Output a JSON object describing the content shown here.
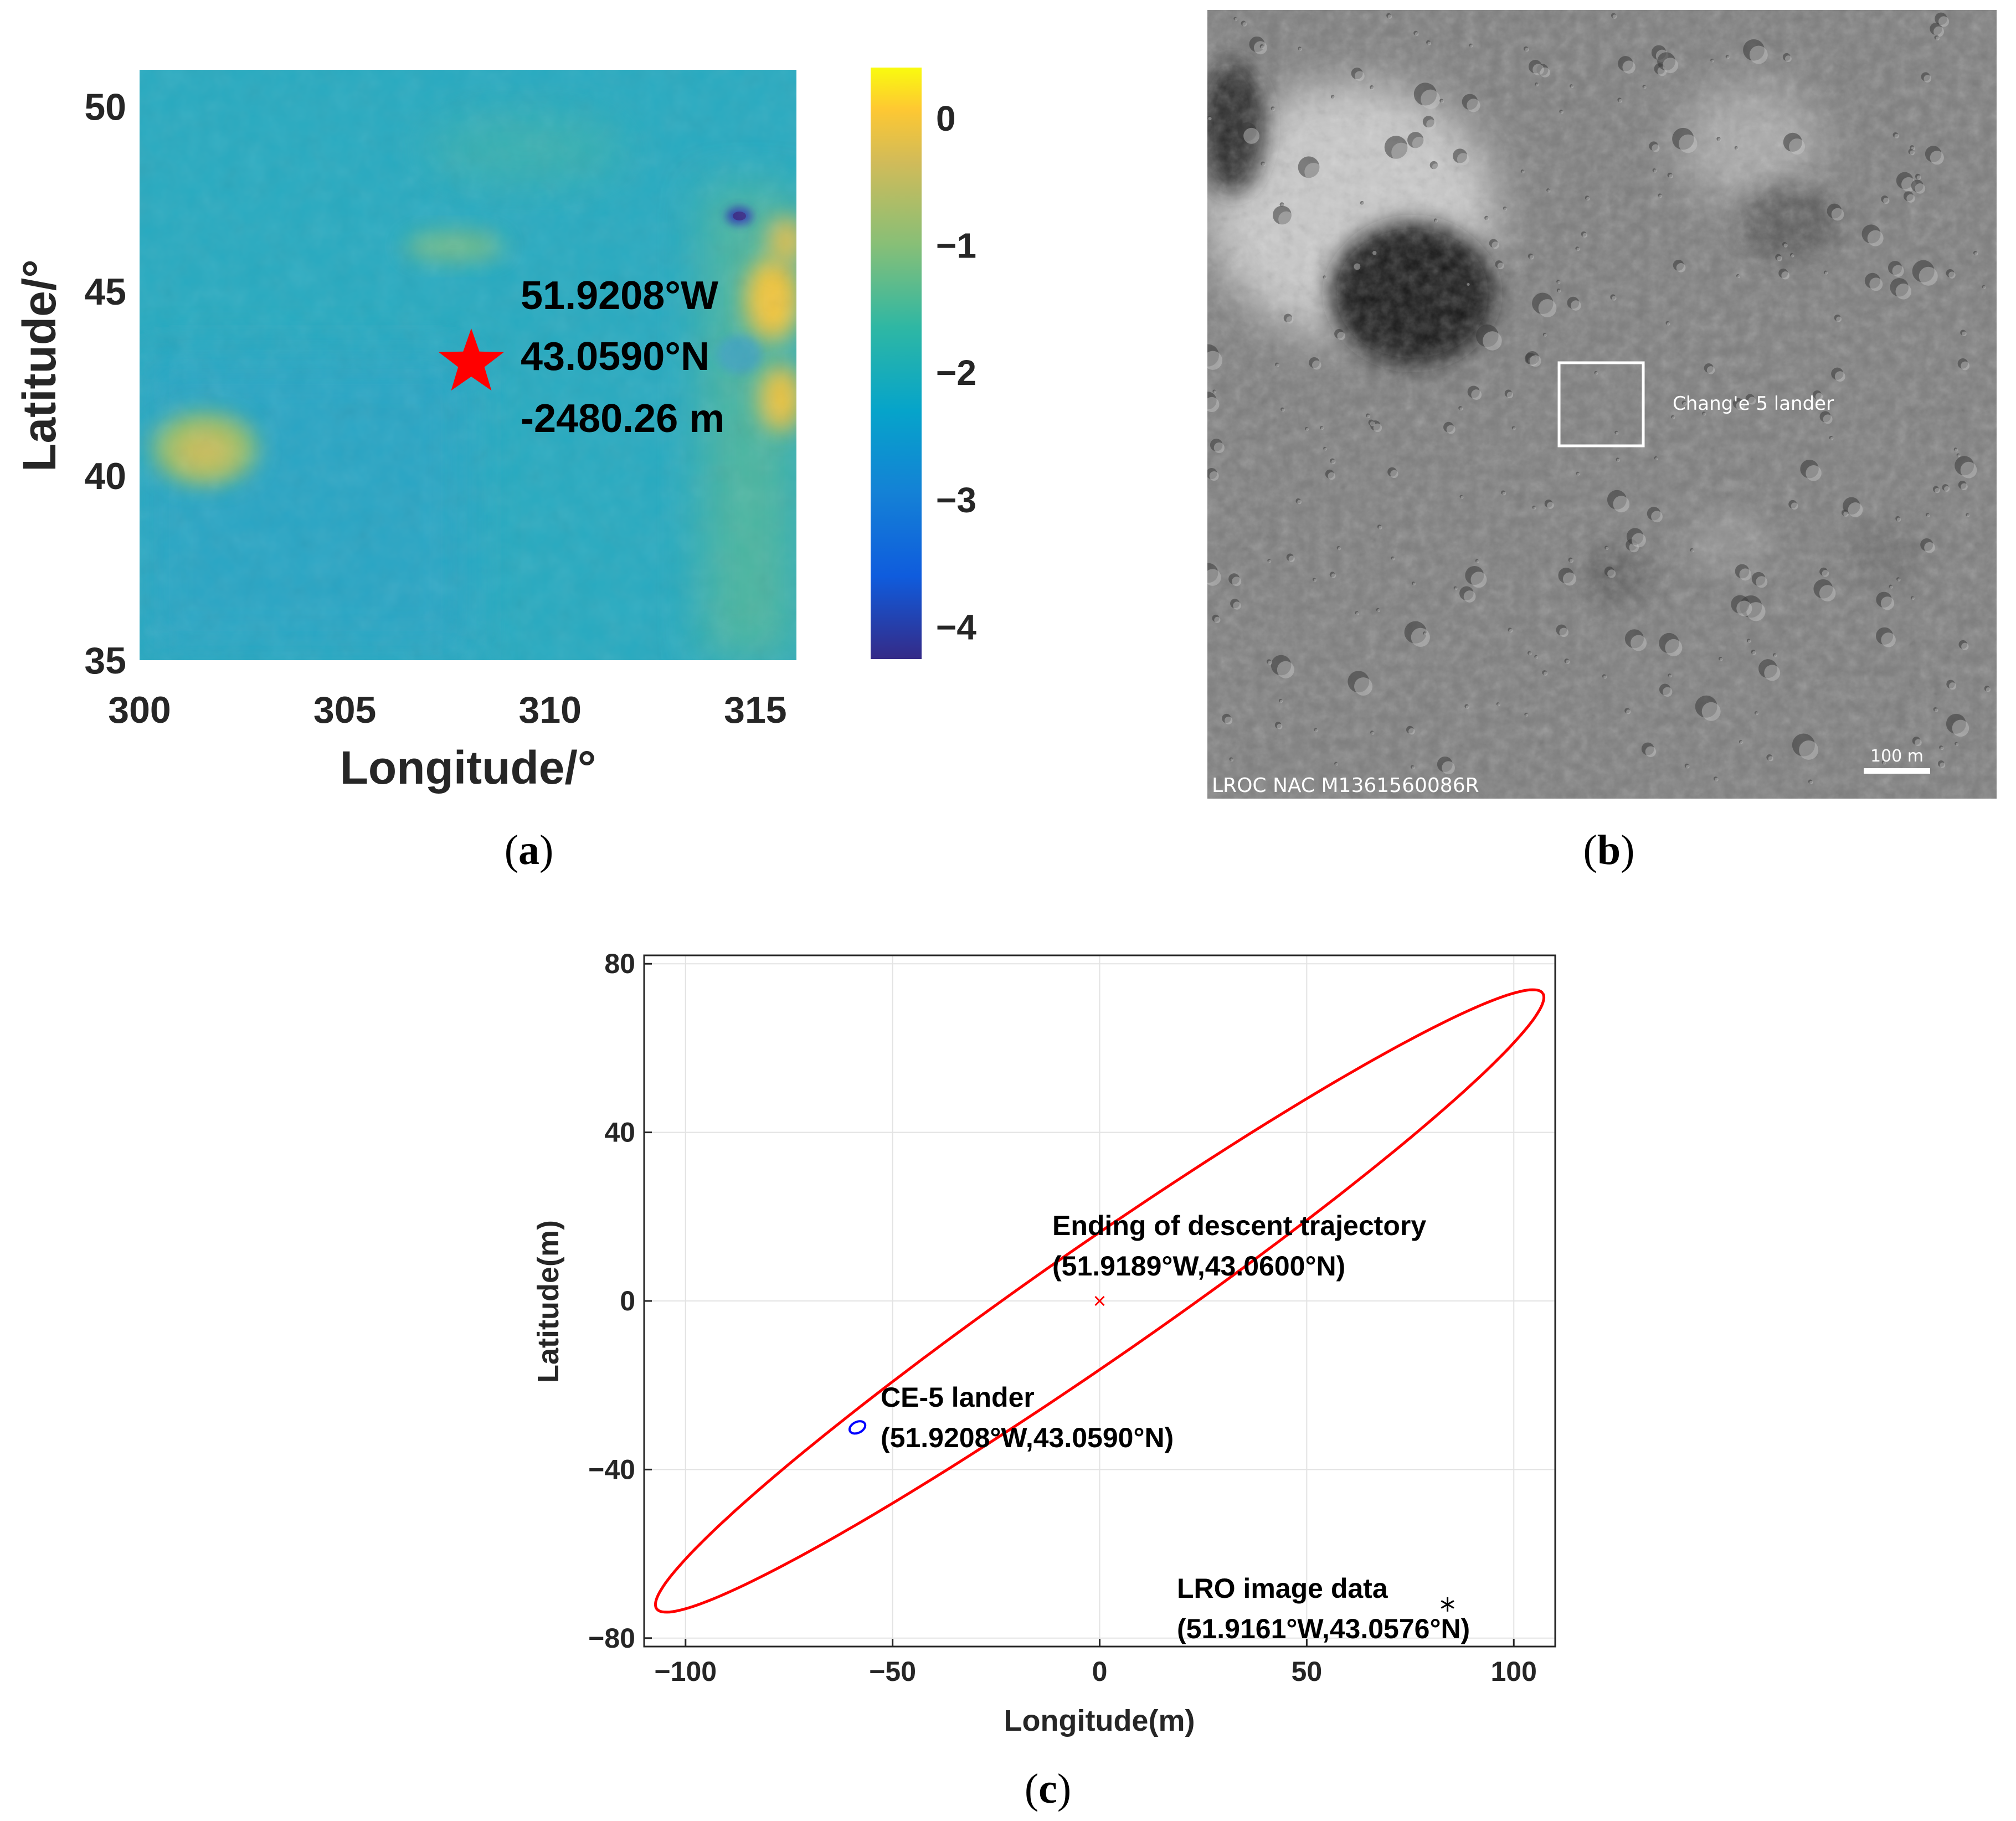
{
  "chart_data": [
    {
      "type": "heatmap",
      "panel_label": "(a)",
      "label_letter": "a",
      "xlabel": "Longitude/°",
      "ylabel": "Latitude/°",
      "xlim": [
        300,
        316
      ],
      "ylim": [
        35,
        51
      ],
      "xticks": [
        300,
        305,
        310,
        315
      ],
      "yticks": [
        35,
        40,
        45,
        50
      ],
      "colorbar": {
        "colormap": "parula",
        "range_km": [
          -4.25,
          0.4
        ],
        "ticks": [
          0,
          -1,
          -2,
          -3,
          -4
        ],
        "tick_labels": [
          "0",
          "−1",
          "−2",
          "−3",
          "−4"
        ]
      },
      "marker": {
        "shape": "star",
        "color": "#ff0000",
        "lon": 308.08,
        "lat": 43.06
      },
      "annotation": [
        "51.9208°W",
        "43.0590°N",
        "-2480.26 m"
      ]
    },
    {
      "type": "image",
      "panel_label": "(b)",
      "label_letter": "b",
      "box_label": "Chang'e 5 lander",
      "scale_label": "100 m",
      "credit": "LROC NAC M1361560086R"
    },
    {
      "type": "scatter",
      "panel_label": "(c)",
      "label_letter": "c",
      "xlabel": "Longitude(m)",
      "ylabel": "Latitude(m)",
      "xlim": [
        -110,
        110
      ],
      "ylim": [
        -82,
        82
      ],
      "xticks": [
        -100,
        -50,
        0,
        50,
        100
      ],
      "yticks": [
        80,
        40,
        0,
        -40,
        -80
      ],
      "xtick_labels": [
        "−100",
        "−50",
        "0",
        "50",
        "100"
      ],
      "ytick_labels": [
        "80",
        "40",
        "0",
        "−40",
        "−80"
      ],
      "grid": true,
      "red_ellipse": {
        "center": [
          0,
          0
        ],
        "end_a": [
          -107,
          -73
        ],
        "end_b": [
          107,
          73
        ],
        "semi_minor": 13.5,
        "color": "#ff0000"
      },
      "blue_ellipse": {
        "center": [
          -58.5,
          -30
        ],
        "rx": 2.0,
        "ry": 1.3,
        "color": "#0000ff"
      },
      "points": [
        {
          "name": "Ending of descent trajectory",
          "coord": "(51.9189°W,43.0600°N)",
          "x": 0,
          "y": 0,
          "marker": "x",
          "color": "#ff0000"
        },
        {
          "name": "CE-5 lander",
          "coord": "(51.9208°W,43.0590°N)",
          "x": -58.5,
          "y": -30,
          "marker": "o",
          "color": "#0000ff"
        },
        {
          "name": "LRO image data",
          "coord": "(51.9161°W,43.0576°N)",
          "x": 84,
          "y": -72,
          "marker": "*",
          "color": "#000000"
        }
      ]
    }
  ]
}
